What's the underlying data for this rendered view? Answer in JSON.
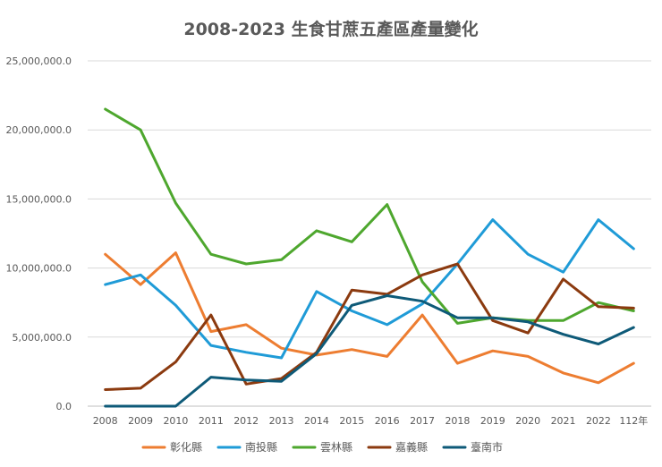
{
  "chart_data": {
    "type": "line",
    "title": "2008-2023 生食甘蔗五產區產量變化",
    "xlabel": "",
    "ylabel": "",
    "categories": [
      "2008",
      "2009",
      "2010",
      "2011",
      "2012",
      "2013",
      "2014",
      "2015",
      "2016",
      "2017",
      "2018",
      "2019",
      "2020",
      "2021",
      "2022",
      "112年"
    ],
    "y_ticks": [
      "0.0",
      "5,000,000.0",
      "10,000,000.0",
      "15,000,000.0",
      "20,000,000.0",
      "25,000,000.0"
    ],
    "ylim": [
      0,
      25000000
    ],
    "grid": true,
    "legend_position": "bottom",
    "series": [
      {
        "name": "彰化縣",
        "color": "#ED7D31",
        "values": [
          11000000,
          8800000,
          11100000,
          5400000,
          5900000,
          4200000,
          3700000,
          4100000,
          3600000,
          6600000,
          3100000,
          4000000,
          3600000,
          2400000,
          1700000,
          3100000
        ]
      },
      {
        "name": "南投縣",
        "color": "#1F9BD7",
        "values": [
          8800000,
          9500000,
          7300000,
          4400000,
          3900000,
          3500000,
          8300000,
          6900000,
          5900000,
          7400000,
          10300000,
          13500000,
          11000000,
          9700000,
          13500000,
          11400000
        ]
      },
      {
        "name": "雲林縣",
        "color": "#4EA72E",
        "values": [
          21500000,
          20000000,
          14700000,
          11000000,
          10300000,
          10600000,
          12700000,
          11900000,
          14600000,
          9000000,
          6000000,
          6400000,
          6200000,
          6200000,
          7500000,
          6900000
        ]
      },
      {
        "name": "嘉義縣",
        "color": "#8B3A0F",
        "values": [
          1200000,
          1300000,
          3200000,
          6600000,
          1600000,
          2000000,
          3900000,
          8400000,
          8100000,
          9500000,
          10300000,
          6200000,
          5300000,
          9200000,
          7200000,
          7100000
        ]
      },
      {
        "name": "臺南市",
        "color": "#0E5A78",
        "values": [
          0,
          0,
          0,
          2100000,
          1900000,
          1800000,
          3800000,
          7300000,
          8000000,
          7600000,
          6400000,
          6400000,
          6100000,
          5200000,
          4500000,
          5700000
        ]
      }
    ]
  }
}
